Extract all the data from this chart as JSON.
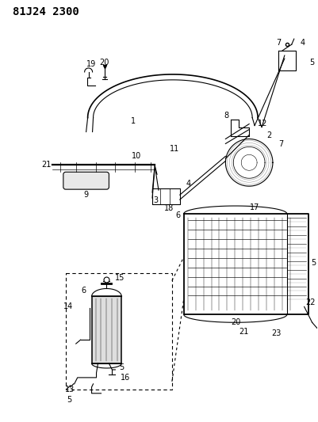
{
  "title": "81J24 2300",
  "bg_color": "#ffffff",
  "line_color": "#000000",
  "title_fontsize": 10,
  "label_fontsize": 7,
  "fig_width": 4.01,
  "fig_height": 5.33
}
